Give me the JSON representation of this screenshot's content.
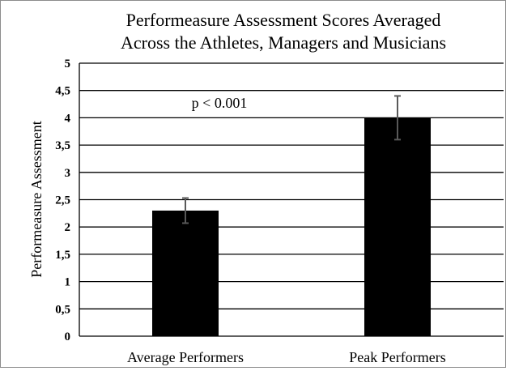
{
  "chart_data": {
    "type": "bar",
    "title_lines": [
      "Performeasure Assessment Scores Averaged",
      "Across the Athletes, Managers and Musicians"
    ],
    "xlabel": "",
    "ylabel": "Performeasure  Assessment",
    "categories": [
      "Average Performers",
      "Peak Performers"
    ],
    "values": [
      2.3,
      4.0
    ],
    "error_low": [
      2.07,
      3.6
    ],
    "error_high": [
      2.53,
      4.4
    ],
    "ylim": [
      0,
      5
    ],
    "yticks": [
      0,
      0.5,
      1,
      1.5,
      2,
      2.5,
      3,
      3.5,
      4,
      4.5,
      5
    ],
    "ytick_labels": [
      "0",
      "0,5",
      "1",
      "1,5",
      "2",
      "2,5",
      "3",
      "3,5",
      "4",
      "4,5",
      "5"
    ],
    "grid": true,
    "annotation": "p < 0.001",
    "bar_color": "#000000",
    "error_color": "#595959"
  }
}
